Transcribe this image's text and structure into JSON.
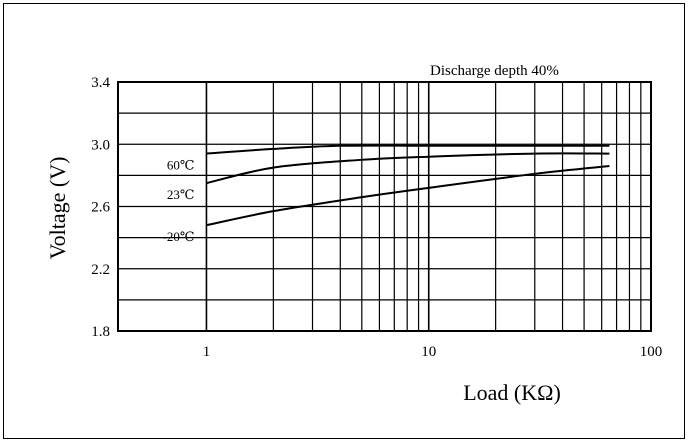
{
  "chart_data": {
    "type": "line",
    "title": "",
    "annotation": "Discharge depth 40%",
    "xlabel": "Load (KΩ)",
    "ylabel": "Voltage (V)",
    "xscale": "log",
    "xlim": [
      0.4,
      100
    ],
    "ylim": [
      1.8,
      3.4
    ],
    "xticks": [
      1,
      10,
      100
    ],
    "xtick_labels": [
      "1",
      "10",
      "100"
    ],
    "yticks": [
      1.8,
      2.2,
      2.6,
      3.0,
      3.4
    ],
    "ytick_labels": [
      "1.8",
      "2.2",
      "2.6",
      "3.0",
      "3.4"
    ],
    "grid": true,
    "series": [
      {
        "name": "60℃",
        "x": [
          1,
          2,
          4,
          10,
          30,
          65
        ],
        "values": [
          2.94,
          2.97,
          2.99,
          2.99,
          2.99,
          2.99
        ]
      },
      {
        "name": "23℃",
        "x": [
          1,
          2,
          5,
          10,
          30,
          65
        ],
        "values": [
          2.75,
          2.85,
          2.9,
          2.92,
          2.94,
          2.94
        ]
      },
      {
        "name": "-20℃",
        "x": [
          1,
          2,
          5,
          10,
          30,
          65
        ],
        "values": [
          2.48,
          2.57,
          2.66,
          2.72,
          2.81,
          2.86
        ]
      }
    ]
  }
}
